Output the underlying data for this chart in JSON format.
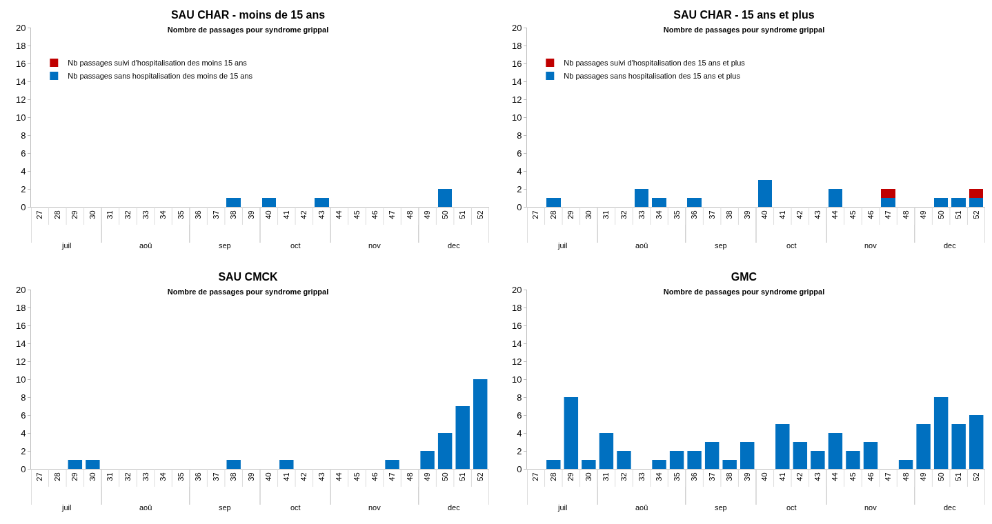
{
  "chart_data": [
    {
      "type": "bar",
      "title": "SAU CHAR - moins de 15 ans",
      "subtitle": "Nombre de passages pour syndrome grippal",
      "stacked": true,
      "legend": "top left",
      "grid": false,
      "ylim": [
        0,
        20
      ],
      "yticks": [
        0,
        2,
        4,
        6,
        8,
        10,
        12,
        14,
        16,
        18,
        20
      ],
      "categories": [
        "27",
        "28",
        "29",
        "30",
        "31",
        "32",
        "33",
        "34",
        "35",
        "36",
        "37",
        "38",
        "39",
        "40",
        "41",
        "42",
        "43",
        "44",
        "45",
        "46",
        "47",
        "48",
        "49",
        "50",
        "51",
        "52"
      ],
      "series": [
        {
          "name": "Nb passages sans hospitalisation des moins de 15 ans",
          "color": "#0070c0",
          "values": [
            0,
            0,
            0,
            0,
            0,
            0,
            0,
            0,
            0,
            0,
            0,
            1,
            0,
            1,
            0,
            0,
            1,
            0,
            0,
            0,
            0,
            0,
            0,
            2,
            0,
            0
          ]
        },
        {
          "name": "Nb passages suivi d'hospitalisation des moins 15 ans",
          "color": "#c00000",
          "values": [
            0,
            0,
            0,
            0,
            0,
            0,
            0,
            0,
            0,
            0,
            0,
            0,
            0,
            0,
            0,
            0,
            0,
            0,
            0,
            0,
            0,
            0,
            0,
            0,
            0,
            0
          ]
        }
      ],
      "annotations": [
        "juil",
        "aoû",
        "sep",
        "oct",
        "nov",
        "dec"
      ]
    },
    {
      "type": "bar",
      "title": "SAU CHAR - 15 ans et plus",
      "subtitle": "Nombre de passages pour syndrome grippal",
      "stacked": true,
      "legend": "top left",
      "grid": false,
      "ylim": [
        0,
        20
      ],
      "yticks": [
        0,
        2,
        4,
        6,
        8,
        10,
        12,
        14,
        16,
        18,
        20
      ],
      "categories": [
        "27",
        "28",
        "29",
        "30",
        "31",
        "32",
        "33",
        "34",
        "35",
        "36",
        "37",
        "38",
        "39",
        "40",
        "41",
        "42",
        "43",
        "44",
        "45",
        "46",
        "47",
        "48",
        "49",
        "50",
        "51",
        "52"
      ],
      "series": [
        {
          "name": "Nb passages sans hospitalisation des 15 ans et plus",
          "color": "#0070c0",
          "values": [
            0,
            1,
            0,
            0,
            0,
            0,
            2,
            1,
            0,
            1,
            0,
            0,
            0,
            3,
            0,
            0,
            0,
            2,
            0,
            0,
            1,
            0,
            0,
            1,
            1,
            1
          ]
        },
        {
          "name": "Nb passages suivi d'hospitalisation des 15 ans et plus",
          "color": "#c00000",
          "values": [
            0,
            0,
            0,
            0,
            0,
            0,
            0,
            0,
            0,
            0,
            0,
            0,
            0,
            0,
            0,
            0,
            0,
            0,
            0,
            0,
            1,
            0,
            0,
            0,
            0,
            1
          ]
        }
      ],
      "annotations": [
        "juil",
        "aoû",
        "sep",
        "oct",
        "nov",
        "dec"
      ]
    },
    {
      "type": "bar",
      "title": "SAU CMCK",
      "subtitle": "Nombre de passages pour syndrome grippal",
      "legend": false,
      "grid": false,
      "ylim": [
        0,
        20
      ],
      "yticks": [
        0,
        2,
        4,
        6,
        8,
        10,
        12,
        14,
        16,
        18,
        20
      ],
      "categories": [
        "27",
        "28",
        "29",
        "30",
        "31",
        "32",
        "33",
        "34",
        "35",
        "36",
        "37",
        "38",
        "39",
        "40",
        "41",
        "42",
        "43",
        "44",
        "45",
        "46",
        "47",
        "48",
        "49",
        "50",
        "51",
        "52"
      ],
      "series": [
        {
          "color": "#0070c0",
          "values": [
            0,
            0,
            1,
            1,
            0,
            0,
            0,
            0,
            0,
            0,
            0,
            1,
            0,
            0,
            1,
            0,
            0,
            0,
            0,
            0,
            1,
            0,
            2,
            4,
            7,
            10
          ]
        }
      ],
      "annotations": [
        "juil",
        "aoû",
        "sep",
        "oct",
        "nov",
        "dec"
      ]
    },
    {
      "type": "bar",
      "title": "GMC",
      "subtitle": "Nombre de passages pour syndrome grippal",
      "legend": false,
      "grid": false,
      "ylim": [
        0,
        20
      ],
      "yticks": [
        0,
        2,
        4,
        6,
        8,
        10,
        12,
        14,
        16,
        18,
        20
      ],
      "categories": [
        "27",
        "28",
        "29",
        "30",
        "31",
        "32",
        "33",
        "34",
        "35",
        "36",
        "37",
        "38",
        "39",
        "40",
        "41",
        "42",
        "43",
        "44",
        "45",
        "46",
        "47",
        "48",
        "49",
        "50",
        "51",
        "52"
      ],
      "series": [
        {
          "color": "#0070c0",
          "values": [
            0,
            1,
            8,
            1,
            4,
            2,
            0,
            1,
            2,
            2,
            3,
            1,
            3,
            0,
            5,
            3,
            2,
            4,
            2,
            3,
            0,
            1,
            5,
            8,
            5,
            6
          ]
        }
      ],
      "annotations": [
        "juil",
        "aoû",
        "sep",
        "oct",
        "nov",
        "dec"
      ]
    }
  ]
}
